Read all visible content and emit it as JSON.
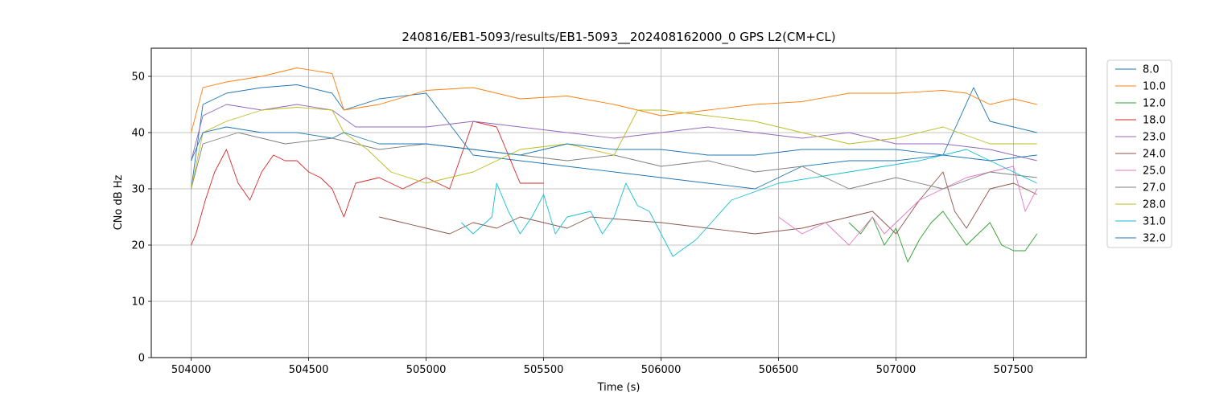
{
  "chart_data": {
    "type": "line",
    "title": "240816/EB1-5093/results/EB1-5093__202408162000_0 GPS L2(CM+CL)",
    "xlabel": "Time (s)",
    "ylabel": "CNo dB Hz",
    "xlim": [
      503830,
      507810
    ],
    "ylim": [
      0,
      55
    ],
    "xticks": [
      504000,
      504500,
      505000,
      505500,
      506000,
      506500,
      507000,
      507500
    ],
    "yticks": [
      0,
      10,
      20,
      30,
      40,
      50
    ],
    "grid": true,
    "legend_position": "right",
    "series": [
      {
        "name": "8.0",
        "color": "#1f77b4",
        "x": [
          504000,
          504050,
          504150,
          504300,
          504450,
          504600,
          504650,
          504800,
          505000,
          505200,
          505400,
          505600,
          505800,
          506000,
          506200,
          506400,
          506600,
          506800,
          507000,
          507200,
          507330,
          507400,
          507500,
          507600
        ],
        "values": [
          30,
          45,
          47,
          48,
          48.5,
          47,
          44,
          46,
          47,
          36,
          35,
          34,
          33,
          32,
          31,
          30,
          34,
          35,
          35,
          36,
          48,
          42,
          41,
          40
        ]
      },
      {
        "name": "10.0",
        "color": "#ff7f0e",
        "x": [
          504000,
          504050,
          504150,
          504300,
          504450,
          504600,
          504650,
          504800,
          505000,
          505200,
          505400,
          505600,
          505800,
          506000,
          506200,
          506400,
          506600,
          506800,
          507000,
          507200,
          507300,
          507400,
          507500,
          507600
        ],
        "values": [
          40,
          48,
          49,
          50,
          51.5,
          50.5,
          44,
          45,
          47.5,
          48,
          46,
          46.5,
          45,
          43,
          44,
          45,
          45.5,
          47,
          47,
          47.5,
          47,
          45,
          46,
          45
        ]
      },
      {
        "name": "12.0",
        "color": "#2ca02c",
        "x": [
          506800,
          506850,
          506900,
          506950,
          507000,
          507050,
          507100,
          507150,
          507200,
          507250,
          507300,
          507350,
          507400,
          507450,
          507500,
          507550,
          507600
        ],
        "values": [
          24,
          22,
          25,
          20,
          23,
          17,
          21,
          24,
          26,
          23,
          20,
          22,
          24,
          20,
          19,
          19,
          22
        ]
      },
      {
        "name": "18.0",
        "color": "#d62728",
        "x": [
          504000,
          504020,
          504060,
          504100,
          504150,
          504200,
          504250,
          504300,
          504350,
          504400,
          504450,
          504500,
          504550,
          504600,
          504650,
          504700,
          504800,
          504900,
          505000,
          505100,
          505200,
          505300,
          505400,
          505500
        ],
        "values": [
          20,
          22,
          28,
          33,
          37,
          31,
          28,
          33,
          36,
          35,
          35,
          33,
          32,
          30,
          25,
          31,
          32,
          30,
          32,
          30,
          42,
          41,
          31,
          31
        ]
      },
      {
        "name": "23.0",
        "color": "#9467bd",
        "x": [
          504000,
          504050,
          504150,
          504300,
          504450,
          504600,
          504700,
          504800,
          505000,
          505200,
          505400,
          505600,
          505800,
          506000,
          506200,
          506400,
          506600,
          506800,
          507000,
          507200,
          507400,
          507600
        ],
        "values": [
          35,
          43,
          45,
          44,
          45,
          44,
          41,
          41,
          41,
          42,
          41,
          40,
          39,
          40,
          41,
          40,
          39,
          40,
          38,
          38,
          37,
          35
        ]
      },
      {
        "name": "24.0",
        "color": "#8c564b",
        "x": [
          504800,
          504900,
          505000,
          505100,
          505200,
          505300,
          505400,
          505500,
          505600,
          505700,
          506000,
          506200,
          506400,
          506600,
          506800,
          506900,
          507000,
          507100,
          507200,
          507250,
          507300,
          507400,
          507500,
          507600
        ],
        "values": [
          25,
          24,
          23,
          22,
          24,
          23,
          25,
          24,
          23,
          25,
          24,
          23,
          22,
          23,
          25,
          26,
          22,
          28,
          33,
          26,
          23,
          30,
          31,
          29
        ]
      },
      {
        "name": "25.0",
        "color": "#e377c2",
        "x": [
          506500,
          506600,
          506700,
          506800,
          506900,
          506950,
          507000,
          507100,
          507200,
          507300,
          507400,
          507500,
          507550,
          507600
        ],
        "values": [
          25,
          22,
          24,
          20,
          25,
          22,
          24,
          28,
          30,
          32,
          33,
          34,
          26,
          30
        ]
      },
      {
        "name": "27.0",
        "color": "#7f7f7f",
        "x": [
          504000,
          504050,
          504200,
          504400,
          504600,
          504800,
          505000,
          505200,
          505400,
          505600,
          505800,
          506000,
          506200,
          506400,
          506600,
          506800,
          507000,
          507200,
          507400,
          507600
        ],
        "values": [
          30,
          38,
          40,
          38,
          39,
          37,
          38,
          37,
          36,
          35,
          36,
          34,
          35,
          33,
          34,
          30,
          32,
          30,
          33,
          32
        ]
      },
      {
        "name": "28.0",
        "color": "#bcbd22",
        "x": [
          504000,
          504050,
          504150,
          504300,
          504450,
          504600,
          504650,
          504750,
          504850,
          505000,
          505200,
          505400,
          505600,
          505800,
          505900,
          506000,
          506200,
          506400,
          506600,
          506800,
          507000,
          507200,
          507400,
          507600
        ],
        "values": [
          30,
          40,
          42,
          44,
          44.5,
          44,
          40,
          37,
          33,
          31,
          33,
          37,
          38,
          36,
          44,
          44,
          43,
          42,
          40,
          38,
          39,
          41,
          38,
          38
        ]
      },
      {
        "name": "31.0",
        "color": "#17becf",
        "x": [
          505150,
          505200,
          505280,
          505300,
          505350,
          505400,
          505450,
          505500,
          505550,
          505600,
          505700,
          505750,
          505800,
          505850,
          505900,
          505950,
          506050,
          506150,
          506300,
          506500,
          506800,
          507100,
          507300,
          507400,
          507600
        ],
        "values": [
          24,
          22,
          25,
          31,
          26,
          22,
          25,
          29,
          22,
          25,
          26,
          22,
          25,
          31,
          27,
          26,
          18,
          21,
          28,
          31,
          33,
          35,
          37,
          35,
          31
        ]
      },
      {
        "name": "32.0",
        "color": "#1f77b4",
        "x": [
          504000,
          504050,
          504150,
          504300,
          504450,
          504600,
          504650,
          504800,
          505000,
          505200,
          505400,
          505600,
          505800,
          506000,
          506200,
          506400,
          506600,
          506800,
          507000,
          507200,
          507400,
          507600
        ],
        "values": [
          35,
          40,
          41,
          40,
          40,
          39,
          40,
          38,
          38,
          37,
          36,
          38,
          37,
          37,
          36,
          36,
          37,
          37,
          37,
          36,
          35,
          36
        ]
      }
    ]
  }
}
